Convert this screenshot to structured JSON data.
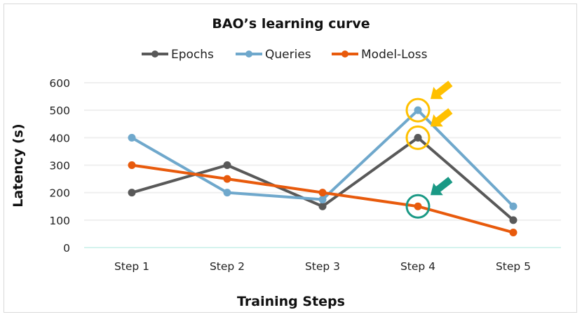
{
  "chart_data": {
    "type": "line",
    "title": "BAO’s learning curve",
    "xlabel": "Training Steps",
    "ylabel": "Latency (s)",
    "categories": [
      "Step 1",
      "Step 2",
      "Step 3",
      "Step 4",
      "Step 5"
    ],
    "ylim": [
      0,
      600
    ],
    "yticks": [
      0,
      100,
      200,
      300,
      400,
      500,
      600
    ],
    "grid": true,
    "legend_position": "top",
    "series": [
      {
        "name": "Epochs",
        "color": "#595959",
        "values": [
          200,
          300,
          150,
          400,
          100
        ]
      },
      {
        "name": "Queries",
        "color": "#6fa8cc",
        "values": [
          400,
          200,
          175,
          500,
          150
        ]
      },
      {
        "name": "Model-Loss",
        "color": "#e85a0c",
        "values": [
          300,
          250,
          200,
          150,
          55
        ]
      }
    ],
    "annotations": [
      {
        "category": "Step 4",
        "series": "Queries",
        "shape": "circle-with-arrow",
        "color": "#ffc000"
      },
      {
        "category": "Step 4",
        "series": "Epochs",
        "shape": "circle-with-arrow",
        "color": "#ffc000"
      },
      {
        "category": "Step 4",
        "series": "Model-Loss",
        "shape": "circle-with-arrow",
        "color": "#1a9985"
      }
    ]
  }
}
